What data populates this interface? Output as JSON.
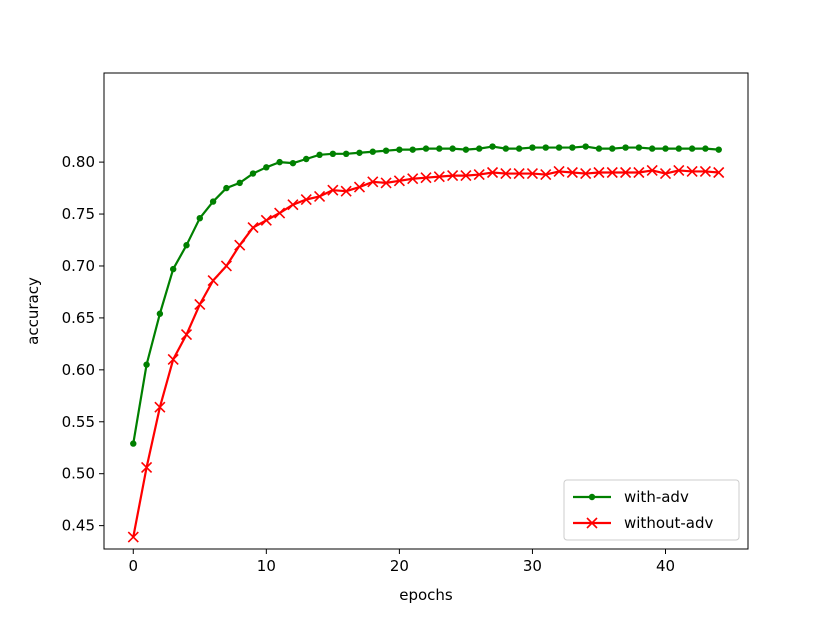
{
  "chart_data": {
    "type": "line",
    "title": "",
    "xlabel": "epochs",
    "ylabel": "accuracy",
    "xlim": [
      -2.2,
      46.2
    ],
    "ylim": [
      0.4275,
      0.8858
    ],
    "xticks": [
      0,
      10,
      20,
      30,
      40
    ],
    "xtick_labels": [
      "0",
      "10",
      "20",
      "30",
      "40"
    ],
    "yticks": [
      0.45,
      0.5,
      0.55,
      0.6,
      0.65,
      0.7,
      0.75,
      0.8
    ],
    "ytick_labels": [
      "0.45",
      "0.50",
      "0.55",
      "0.60",
      "0.65",
      "0.70",
      "0.75",
      "0.80"
    ],
    "grid": false,
    "legend_position": "lower-right",
    "x": [
      0,
      1,
      2,
      3,
      4,
      5,
      6,
      7,
      8,
      9,
      10,
      11,
      12,
      13,
      14,
      15,
      16,
      17,
      18,
      19,
      20,
      21,
      22,
      23,
      24,
      25,
      26,
      27,
      28,
      29,
      30,
      31,
      32,
      33,
      34,
      35,
      36,
      37,
      38,
      39,
      40,
      41,
      42,
      43,
      44
    ],
    "series": [
      {
        "name": "with-adv",
        "color": "#008000",
        "marker": "dot",
        "values": [
          0.529,
          0.605,
          0.654,
          0.697,
          0.72,
          0.746,
          0.762,
          0.775,
          0.78,
          0.789,
          0.795,
          0.8,
          0.799,
          0.803,
          0.807,
          0.808,
          0.808,
          0.809,
          0.81,
          0.811,
          0.812,
          0.812,
          0.813,
          0.813,
          0.813,
          0.812,
          0.813,
          0.815,
          0.813,
          0.813,
          0.814,
          0.814,
          0.814,
          0.814,
          0.815,
          0.813,
          0.813,
          0.814,
          0.814,
          0.813,
          0.813,
          0.813,
          0.813,
          0.813,
          0.812
        ]
      },
      {
        "name": "without-adv",
        "color": "#ff0000",
        "marker": "x",
        "values": [
          0.439,
          0.506,
          0.564,
          0.61,
          0.634,
          0.663,
          0.686,
          0.7,
          0.72,
          0.737,
          0.744,
          0.751,
          0.759,
          0.764,
          0.767,
          0.773,
          0.772,
          0.776,
          0.781,
          0.78,
          0.782,
          0.784,
          0.785,
          0.786,
          0.787,
          0.787,
          0.788,
          0.79,
          0.789,
          0.789,
          0.789,
          0.788,
          0.791,
          0.79,
          0.789,
          0.79,
          0.79,
          0.79,
          0.79,
          0.792,
          0.789,
          0.792,
          0.791,
          0.791,
          0.79
        ]
      }
    ]
  }
}
